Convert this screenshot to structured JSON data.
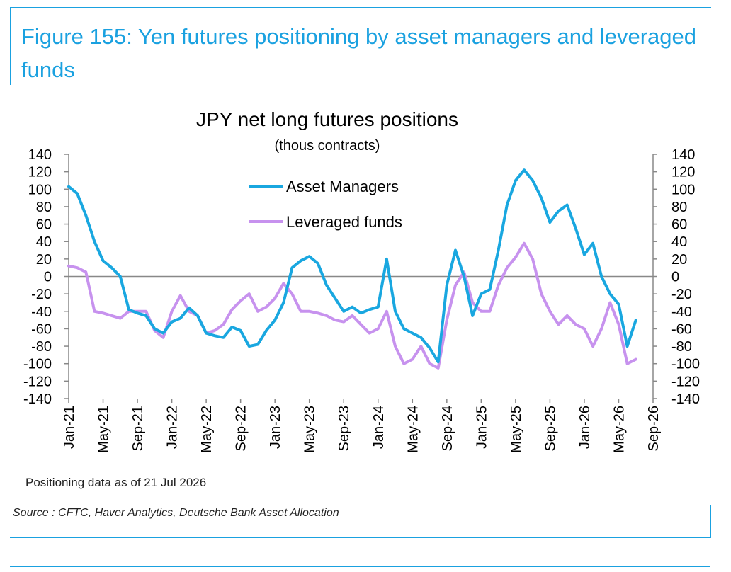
{
  "figure": {
    "title": "Figure 155: Yen futures positioning by asset managers and leveraged funds",
    "note": "Positioning data as of 21 Jul 2026",
    "source": "Source : CFTC, Haver Analytics, Deutsche Bank Asset Allocation",
    "accent_color": "#1aa1e0"
  },
  "chart_data": {
    "type": "line",
    "title": "JPY net long futures positions",
    "subtitle": "(thous contracts)",
    "xlabel": "",
    "ylabel": "",
    "ylim": [
      -140,
      140
    ],
    "yticks": [
      140,
      120,
      100,
      80,
      60,
      40,
      20,
      0,
      -20,
      -40,
      -60,
      -80,
      -100,
      -120,
      -140
    ],
    "secondary_y_axis_mirrors_primary": true,
    "xlim": [
      "2021-01",
      "2026-09"
    ],
    "xticks": [
      "Jan-21",
      "May-21",
      "Sep-21",
      "Jan-22",
      "May-22",
      "Sep-22",
      "Jan-23",
      "May-23",
      "Sep-23",
      "Jan-24",
      "May-24",
      "Sep-24",
      "Jan-25",
      "May-25",
      "Sep-25",
      "Jan-26",
      "May-26",
      "Sep-26"
    ],
    "grid": false,
    "legend_position": "upper-center",
    "x": [
      "2021-01",
      "2021-02",
      "2021-03",
      "2021-04",
      "2021-05",
      "2021-06",
      "2021-07",
      "2021-08",
      "2021-09",
      "2021-10",
      "2021-11",
      "2021-12",
      "2022-01",
      "2022-02",
      "2022-03",
      "2022-04",
      "2022-05",
      "2022-06",
      "2022-07",
      "2022-08",
      "2022-09",
      "2022-10",
      "2022-11",
      "2022-12",
      "2023-01",
      "2023-02",
      "2023-03",
      "2023-04",
      "2023-05",
      "2023-06",
      "2023-07",
      "2023-08",
      "2023-09",
      "2023-10",
      "2023-11",
      "2023-12",
      "2024-01",
      "2024-02",
      "2024-03",
      "2024-04",
      "2024-05",
      "2024-06",
      "2024-07",
      "2024-08",
      "2024-09",
      "2024-10",
      "2024-11",
      "2024-12",
      "2025-01",
      "2025-02",
      "2025-03",
      "2025-04",
      "2025-05",
      "2025-06",
      "2025-07",
      "2025-08",
      "2025-09",
      "2025-10",
      "2025-11",
      "2025-12",
      "2026-01",
      "2026-02",
      "2026-03",
      "2026-04",
      "2026-05",
      "2026-06",
      "2026-07"
    ],
    "series": [
      {
        "name": "Asset Managers",
        "color": "#19a7e0",
        "values": [
          103,
          95,
          70,
          40,
          18,
          10,
          0,
          -38,
          -42,
          -45,
          -60,
          -65,
          -52,
          -48,
          -36,
          -45,
          -65,
          -68,
          -70,
          -58,
          -62,
          -80,
          -78,
          -62,
          -50,
          -30,
          10,
          18,
          23,
          15,
          -10,
          -25,
          -40,
          -35,
          -42,
          -38,
          -35,
          20,
          -40,
          -60,
          -65,
          -70,
          -82,
          -98,
          -10,
          30,
          0,
          -45,
          -20,
          -15,
          30,
          82,
          110,
          122,
          110,
          90,
          62,
          75,
          82,
          55,
          25,
          38,
          0,
          -20,
          -32,
          -80,
          -50
        ]
      },
      {
        "name": "Leveraged funds",
        "color": "#c792ee",
        "values": [
          12,
          10,
          5,
          -40,
          -42,
          -45,
          -48,
          -40,
          -40,
          -40,
          -62,
          -70,
          -40,
          -22,
          -40,
          -45,
          -65,
          -62,
          -55,
          -38,
          -28,
          -20,
          -40,
          -35,
          -25,
          -8,
          -20,
          -40,
          -40,
          -42,
          -45,
          -50,
          -52,
          -45,
          -55,
          -65,
          -60,
          -40,
          -80,
          -100,
          -95,
          -80,
          -100,
          -105,
          -50,
          -10,
          5,
          -30,
          -40,
          -40,
          -10,
          10,
          22,
          38,
          20,
          -20,
          -40,
          -55,
          -45,
          -55,
          -60,
          -80,
          -60,
          -30,
          -55,
          -100,
          -95
        ]
      }
    ]
  }
}
